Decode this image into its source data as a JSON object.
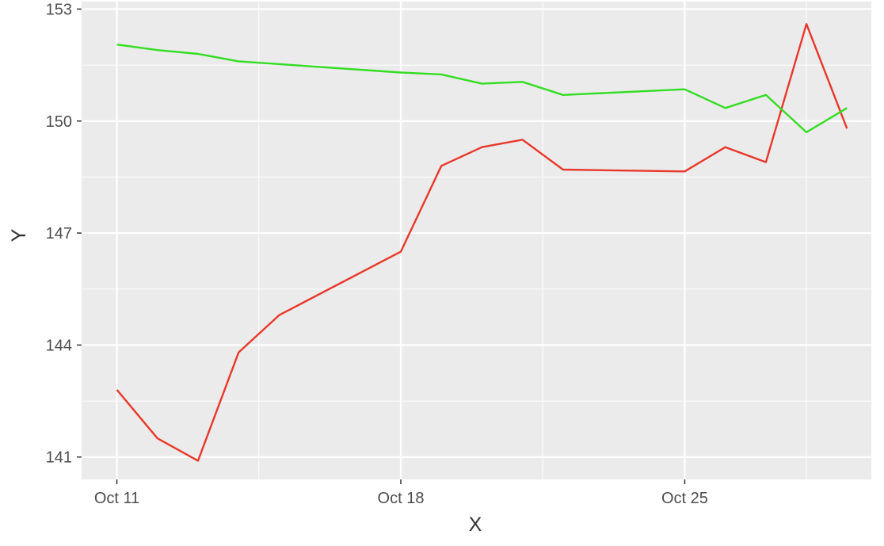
{
  "chart_data": {
    "type": "line",
    "title": "",
    "xlabel": "X",
    "ylabel": "Y",
    "x_ticks": [
      {
        "date": "2023-10-11",
        "label": "Oct 11"
      },
      {
        "date": "2023-10-18",
        "label": "Oct 18"
      },
      {
        "date": "2023-10-25",
        "label": "Oct 25"
      }
    ],
    "y_ticks": [
      141,
      144,
      147,
      150,
      153
    ],
    "xlim": [
      "2023-10-10",
      "2023-10-29"
    ],
    "ylim": [
      140.4,
      153.2
    ],
    "grid": true,
    "background": "#ebebeb",
    "series": [
      {
        "color": "#e8382a",
        "points": [
          {
            "x": "2023-10-11",
            "y": 142.8
          },
          {
            "x": "2023-10-12",
            "y": 141.5
          },
          {
            "x": "2023-10-13",
            "y": 140.9
          },
          {
            "x": "2023-10-14",
            "y": 143.8
          },
          {
            "x": "2023-10-15",
            "y": 144.8
          },
          {
            "x": "2023-10-18",
            "y": 146.5
          },
          {
            "x": "2023-10-19",
            "y": 148.8
          },
          {
            "x": "2023-10-20",
            "y": 149.3
          },
          {
            "x": "2023-10-21",
            "y": 149.5
          },
          {
            "x": "2023-10-22",
            "y": 148.7
          },
          {
            "x": "2023-10-25",
            "y": 148.65
          },
          {
            "x": "2023-10-26",
            "y": 149.3
          },
          {
            "x": "2023-10-27",
            "y": 148.9
          },
          {
            "x": "2023-10-28",
            "y": 152.6
          },
          {
            "x": "2023-10-29",
            "y": 149.8
          }
        ]
      },
      {
        "color": "#33dd22",
        "points": [
          {
            "x": "2023-10-11",
            "y": 152.05
          },
          {
            "x": "2023-10-12",
            "y": 151.9
          },
          {
            "x": "2023-10-13",
            "y": 151.8
          },
          {
            "x": "2023-10-14",
            "y": 151.6
          },
          {
            "x": "2023-10-18",
            "y": 151.3
          },
          {
            "x": "2023-10-19",
            "y": 151.25
          },
          {
            "x": "2023-10-20",
            "y": 151.0
          },
          {
            "x": "2023-10-21",
            "y": 151.05
          },
          {
            "x": "2023-10-22",
            "y": 150.7
          },
          {
            "x": "2023-10-25",
            "y": 150.85
          },
          {
            "x": "2023-10-26",
            "y": 150.35
          },
          {
            "x": "2023-10-27",
            "y": 150.7
          },
          {
            "x": "2023-10-28",
            "y": 149.7
          },
          {
            "x": "2023-10-29",
            "y": 150.35
          }
        ]
      }
    ]
  }
}
